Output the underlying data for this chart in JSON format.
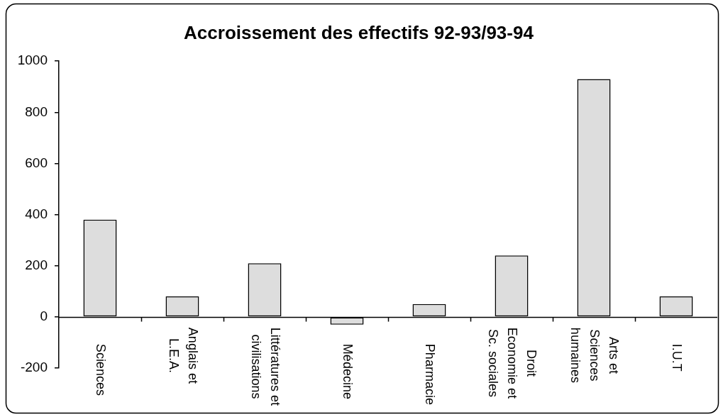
{
  "chart_data": {
    "type": "bar",
    "title": "Accroissement des effectifs 92-93/93-94",
    "categories": [
      "Sciences",
      "Anglais et\nL.E.A.",
      "Littératures et\ncivilisations",
      "Médecine",
      "Pharmacie",
      "Droit\nEconomie et\nSc. sociales",
      "Arts et\nSciences\nhumaines",
      "I.U.T"
    ],
    "values": [
      380,
      80,
      210,
      -30,
      50,
      240,
      930,
      80
    ],
    "color": "#dddddd",
    "ylim": [
      -200,
      1000
    ],
    "yticks": [
      -200,
      0,
      200,
      400,
      600,
      800,
      1000
    ]
  }
}
